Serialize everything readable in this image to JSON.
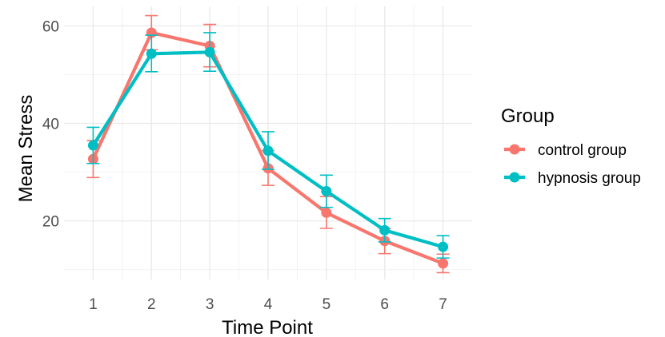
{
  "chart_data": {
    "type": "line",
    "xlabel": "Time Point",
    "ylabel": "Mean Stress",
    "x": [
      1,
      2,
      3,
      4,
      5,
      6,
      7
    ],
    "xticks": [
      "1",
      "2",
      "3",
      "4",
      "5",
      "6",
      "7"
    ],
    "yticks": [
      "20",
      "40",
      "60"
    ],
    "xlim": [
      0.5,
      7.5
    ],
    "ylim": [
      8,
      64
    ],
    "grid": true,
    "legend": {
      "title": "Group",
      "position": "right"
    },
    "series": [
      {
        "name": "control group",
        "color": "#F8766D",
        "values": [
          32.7,
          58.6,
          55.9,
          30.8,
          21.7,
          15.9,
          11.3
        ],
        "error_low": [
          28.9,
          55.1,
          51.6,
          27.3,
          18.5,
          13.3,
          9.4
        ],
        "error_high": [
          36.5,
          62.1,
          60.3,
          34.4,
          25.0,
          18.5,
          13.2
        ]
      },
      {
        "name": "hypnosis group",
        "color": "#00BFC4",
        "values": [
          35.5,
          54.3,
          54.6,
          34.4,
          26.1,
          18.1,
          14.7
        ],
        "error_low": [
          31.8,
          50.6,
          50.7,
          30.6,
          22.8,
          15.7,
          12.4
        ],
        "error_high": [
          39.2,
          58.1,
          58.6,
          38.3,
          29.4,
          20.5,
          17.0
        ]
      }
    ]
  }
}
